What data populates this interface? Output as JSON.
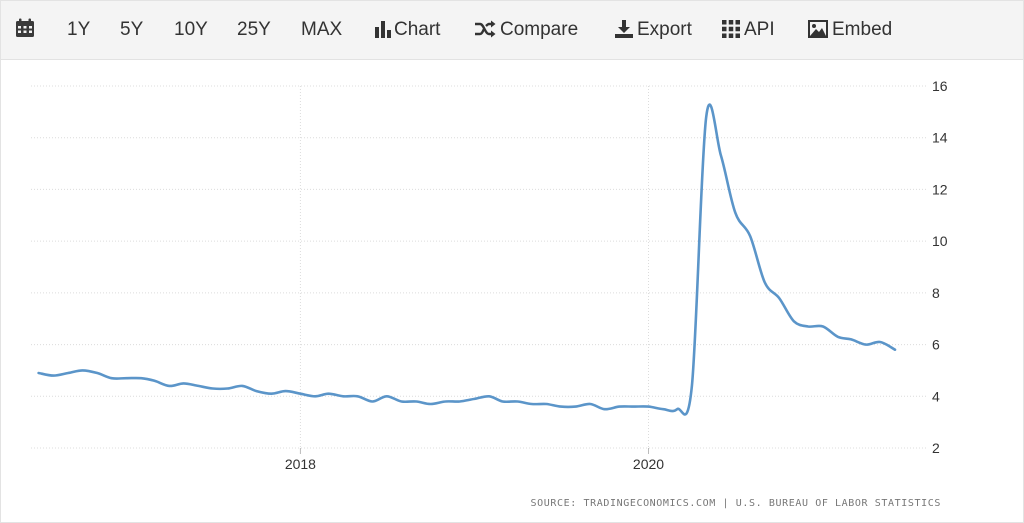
{
  "toolbar": {
    "calendar_icon": "calendar-icon",
    "ranges": [
      "1Y",
      "5Y",
      "10Y",
      "25Y",
      "MAX"
    ],
    "chart_label": "Chart",
    "compare_label": "Compare",
    "export_label": "Export",
    "api_label": "API",
    "embed_label": "Embed"
  },
  "colors": {
    "line": "#5b95c9",
    "grid": "#dcdcdc",
    "toolbar_bg": "#f4f4f4",
    "text": "#333333"
  },
  "source": "SOURCE: TRADINGECONOMICS.COM | U.S. BUREAU OF LABOR STATISTICS",
  "chart_data": {
    "type": "line",
    "title": "",
    "xlabel": "",
    "ylabel": "",
    "x_ticks": [
      "2018",
      "2020"
    ],
    "y_ticks": [
      2,
      4,
      6,
      8,
      10,
      12,
      14,
      16
    ],
    "ylim": [
      2,
      16
    ],
    "xlim": [
      "2016-06-15",
      "2021-07-15"
    ],
    "y_axis_position": "right",
    "grid": true,
    "legend": "none",
    "series": [
      {
        "x": [
          "2016-07-01",
          "2016-08-01",
          "2016-09-01",
          "2016-10-01",
          "2016-11-01",
          "2016-12-01",
          "2017-01-01",
          "2017-02-01",
          "2017-03-01",
          "2017-04-01",
          "2017-05-01",
          "2017-06-01",
          "2017-07-01",
          "2017-08-01",
          "2017-09-01",
          "2017-10-01",
          "2017-11-01",
          "2017-12-01",
          "2018-01-01",
          "2018-02-01",
          "2018-03-01",
          "2018-04-01",
          "2018-05-01",
          "2018-06-01",
          "2018-07-01",
          "2018-08-01",
          "2018-09-01",
          "2018-10-01",
          "2018-11-01",
          "2018-12-01",
          "2019-01-01",
          "2019-02-01",
          "2019-03-01",
          "2019-04-01",
          "2019-05-01",
          "2019-06-01",
          "2019-07-01",
          "2019-08-01",
          "2019-09-01",
          "2019-10-01",
          "2019-11-01",
          "2019-12-01",
          "2020-01-01",
          "2020-02-01",
          "2020-03-01",
          "2020-04-01",
          "2020-05-01",
          "2020-06-01",
          "2020-07-01",
          "2020-08-01",
          "2020-09-01",
          "2020-10-01",
          "2020-11-01",
          "2020-12-01",
          "2021-01-01",
          "2021-02-01",
          "2021-03-01",
          "2021-04-01",
          "2021-05-01",
          "2021-06-01"
        ],
        "values": [
          4.9,
          4.8,
          4.9,
          5.0,
          4.9,
          4.7,
          4.7,
          4.7,
          4.6,
          4.4,
          4.5,
          4.4,
          4.3,
          4.3,
          4.4,
          4.2,
          4.1,
          4.2,
          4.1,
          4.0,
          4.1,
          4.0,
          4.0,
          3.8,
          4.0,
          3.8,
          3.8,
          3.7,
          3.8,
          3.8,
          3.9,
          4.0,
          3.8,
          3.8,
          3.7,
          3.7,
          3.6,
          3.6,
          3.7,
          3.5,
          3.6,
          3.6,
          3.6,
          3.5,
          3.5,
          4.4,
          14.8,
          13.3,
          11.1,
          10.2,
          8.4,
          7.8,
          6.9,
          6.7,
          6.7,
          6.3,
          6.2,
          6.0,
          6.1,
          5.8
        ]
      }
    ]
  }
}
